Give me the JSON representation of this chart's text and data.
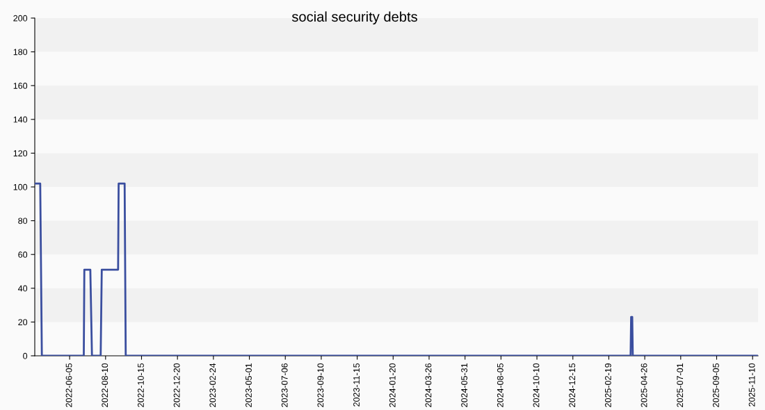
{
  "chart_data": {
    "type": "line",
    "title": "social security debts",
    "x": [
      "2022-04-02",
      "2022-04-12",
      "2022-04-15",
      "2022-07-01",
      "2022-07-02",
      "2022-07-13",
      "2022-07-16",
      "2022-08-01",
      "2022-08-03",
      "2022-09-02",
      "2022-09-03",
      "2022-09-14",
      "2022-09-16",
      "2025-03-31",
      "2025-04-01",
      "2025-04-03",
      "2025-04-04",
      "2025-11-18"
    ],
    "series": [
      {
        "color": "#3a4e9f",
        "values": [
          102,
          102,
          0,
          0,
          51,
          51,
          0,
          0,
          51,
          51,
          102,
          102,
          0,
          0,
          23,
          23,
          0,
          0
        ]
      }
    ],
    "xlim": [
      "2022-04-02",
      "2025-11-20"
    ],
    "xticks": [
      "2022-06-05",
      "2022-08-10",
      "2022-10-15",
      "2022-12-20",
      "2023-02-24",
      "2023-05-01",
      "2023-07-06",
      "2023-09-10",
      "2023-11-15",
      "2024-01-20",
      "2024-03-26",
      "2024-05-31",
      "2024-08-05",
      "2024-10-10",
      "2024-12-15",
      "2025-02-19",
      "2025-04-26",
      "2025-07-01",
      "2025-09-05",
      "2025-11-10"
    ],
    "ylim": [
      0,
      200
    ],
    "yticks": [
      0,
      20,
      40,
      60,
      80,
      100,
      120,
      140,
      160,
      180,
      200
    ],
    "bands": [
      {
        "axis": "y",
        "from": 20,
        "to": 40,
        "color": "#f1f1f1"
      },
      {
        "axis": "y",
        "from": 60,
        "to": 80,
        "color": "#f1f1f1"
      },
      {
        "axis": "y",
        "from": 100,
        "to": 120,
        "color": "#f1f1f1"
      },
      {
        "axis": "y",
        "from": 140,
        "to": 160,
        "color": "#f1f1f1"
      },
      {
        "axis": "y",
        "from": 180,
        "to": 200,
        "color": "#f1f1f1"
      }
    ],
    "marker": "none",
    "line_style": "solid"
  }
}
